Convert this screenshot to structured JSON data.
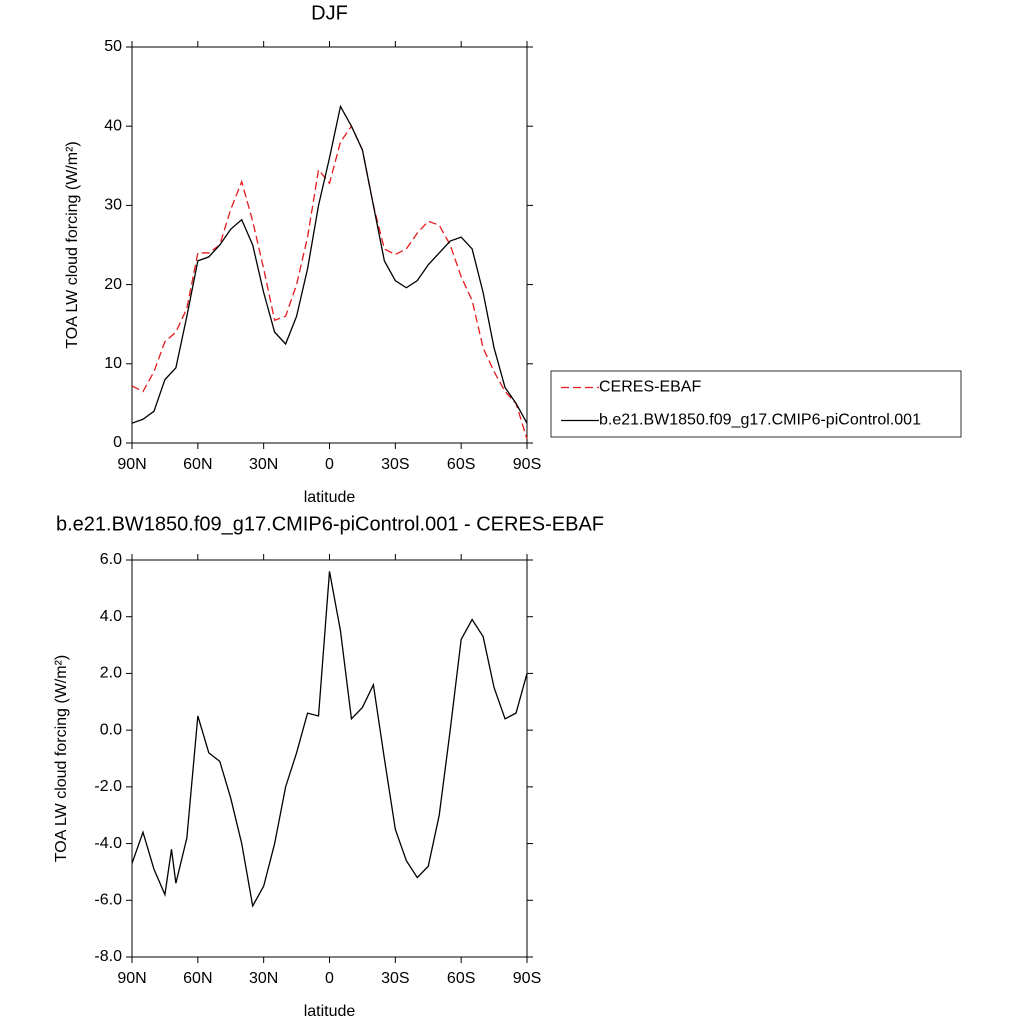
{
  "chart_data": [
    {
      "type": "line",
      "title": "DJF",
      "xlabel": "latitude",
      "ylabel": "TOA LW cloud forcing (W/m²)",
      "x": [
        90,
        85,
        80,
        75,
        70,
        65,
        60,
        55,
        50,
        45,
        40,
        35,
        30,
        25,
        20,
        15,
        10,
        5,
        0,
        -5,
        -10,
        -15,
        -20,
        -25,
        -30,
        -35,
        -40,
        -45,
        -50,
        -55,
        -60,
        -65,
        -70,
        -75,
        -80,
        -85,
        -90
      ],
      "series": [
        {
          "name": "CERES-EBAF",
          "color": "#e41a1c",
          "style": "dashed",
          "values": [
            7.2,
            6.5,
            9,
            12.8,
            14,
            17,
            24,
            24,
            25,
            29.5,
            33,
            28,
            22,
            15.5,
            16,
            20,
            26,
            34.5,
            32.8,
            38,
            40,
            37,
            30,
            24.5,
            23.8,
            24.5,
            26.5,
            28,
            27.5,
            25,
            21,
            18,
            12,
            9,
            6.5,
            5,
            0.5
          ]
        },
        {
          "name": "b.e21.BW1850.f09_g17.CMIP6-piControl.001",
          "color": "#000000",
          "style": "solid",
          "values": [
            2.5,
            3,
            4,
            8,
            9.5,
            16,
            23,
            23.5,
            25,
            27,
            28.2,
            25,
            19,
            14,
            12.5,
            16,
            22,
            30,
            36,
            42.5,
            40,
            37,
            30,
            23,
            20.5,
            19.6,
            20.5,
            22.5,
            24,
            25.5,
            26,
            24.5,
            19,
            12,
            7,
            5,
            2.5
          ]
        }
      ],
      "xlim": [
        90,
        -90
      ],
      "xticks": [
        {
          "value": 90,
          "label": "90N"
        },
        {
          "value": 60,
          "label": "60N"
        },
        {
          "value": 30,
          "label": "30N"
        },
        0,
        {
          "value": -30,
          "label": "30S"
        },
        {
          "value": -60,
          "label": "60S"
        },
        {
          "value": -90,
          "label": "90S"
        }
      ],
      "ylim": [
        0,
        50
      ],
      "yticks": [
        0,
        10,
        20,
        30,
        40,
        50
      ],
      "legend": "right"
    },
    {
      "type": "line",
      "title": "b.e21.BW1850.f09_g17.CMIP6-piControl.001 - CERES-EBAF",
      "xlabel": "latitude",
      "ylabel": "TOA LW cloud forcing (W/m²)",
      "x": [
        90,
        85,
        80,
        75,
        72,
        70,
        65,
        60,
        55,
        50,
        45,
        40,
        35,
        30,
        25,
        20,
        15,
        10,
        5,
        0,
        -5,
        -10,
        -15,
        -20,
        -25,
        -30,
        -35,
        -40,
        -45,
        -50,
        -55,
        -60,
        -65,
        -70,
        -75,
        -80,
        -85,
        -90
      ],
      "color": "#000000",
      "values": [
        -4.7,
        -3.6,
        -4.9,
        -5.8,
        -4.2,
        -5.4,
        -3.8,
        0.5,
        -0.8,
        -1.1,
        -2.4,
        -4,
        -6.2,
        -5.5,
        -4,
        -2,
        -0.8,
        0.6,
        0.5,
        5.6,
        3.5,
        0.4,
        0.8,
        1.6,
        -1,
        -3.5,
        -4.6,
        -5.2,
        -4.8,
        -3,
        0,
        3.2,
        3.9,
        3.3,
        1.5,
        0.4,
        0.6,
        2
      ],
      "xlim": [
        90,
        -90
      ],
      "xticks": [
        {
          "value": 90,
          "label": "90N"
        },
        {
          "value": 60,
          "label": "60N"
        },
        {
          "value": 30,
          "label": "30N"
        },
        0,
        {
          "value": -30,
          "label": "30S"
        },
        {
          "value": -60,
          "label": "60S"
        },
        {
          "value": -90,
          "label": "90S"
        }
      ],
      "ylim": [
        -8,
        6
      ],
      "yticks": [
        {
          "value": -8,
          "label": "-8.0"
        },
        {
          "value": -6,
          "label": "-6.0"
        },
        {
          "value": -4,
          "label": "-4.0"
        },
        {
          "value": -2,
          "label": "-2.0"
        },
        {
          "value": 0,
          "label": "0.0"
        },
        {
          "value": 2,
          "label": "2.0"
        },
        {
          "value": 4,
          "label": "4.0"
        },
        {
          "value": 6,
          "label": "6.0"
        }
      ]
    }
  ]
}
